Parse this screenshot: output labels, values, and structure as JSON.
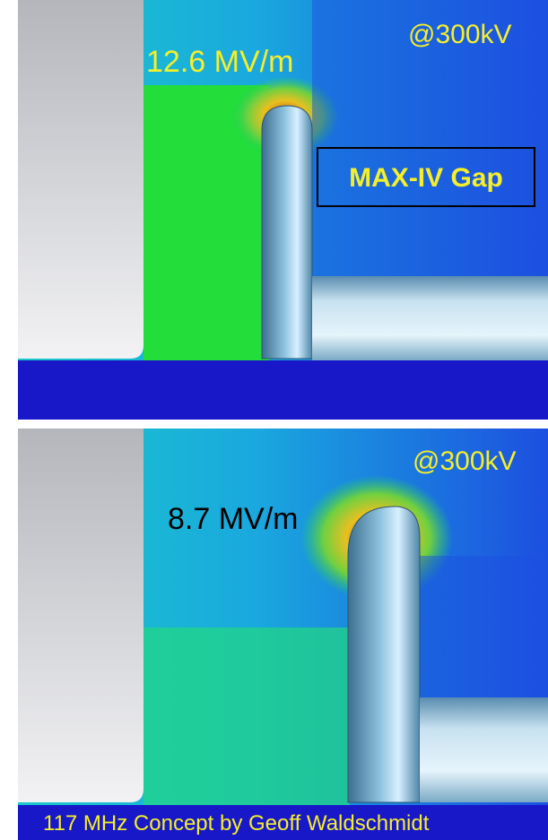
{
  "panels": [
    {
      "voltage": "@300kV",
      "field": "12.6 MV/m",
      "box_label": "MAX-IV Gap"
    },
    {
      "voltage": "@300kV",
      "field": "8.7 MV/m"
    }
  ],
  "caption": "117 MHz Concept by Geoff Waldschmidt"
}
